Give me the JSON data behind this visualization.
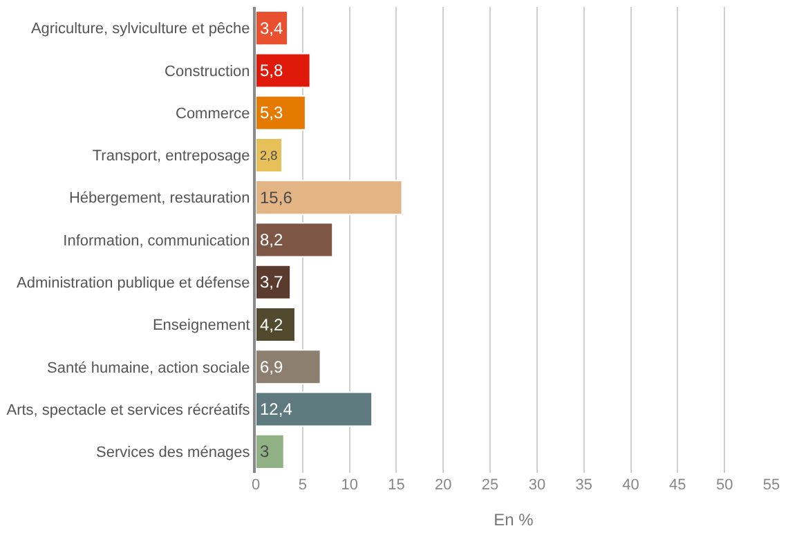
{
  "chart_data": {
    "type": "bar",
    "orientation": "horizontal",
    "xlabel": "En %",
    "categories": [
      "Agriculture, sylviculture et pêche",
      "Construction",
      "Commerce",
      "Transport, entreposage",
      "Hébergement, restauration",
      "Information, communication",
      "Administration publique et défense",
      "Enseignement",
      "Santé humaine, action sociale",
      "Arts, spectacle et services récréatifs",
      "Services des ménages"
    ],
    "values": [
      3.4,
      5.8,
      5.3,
      2.8,
      15.6,
      8.2,
      3.7,
      4.2,
      6.9,
      12.4,
      3
    ],
    "value_labels": [
      "3,4",
      "5,8",
      "5,3",
      "2,8",
      "15,6",
      "8,2",
      "3,7",
      "4,2",
      "6,9",
      "12,4",
      "3"
    ],
    "colors": [
      "#e8502f",
      "#e01a0a",
      "#e57a00",
      "#e8c05a",
      "#e3b585",
      "#7d5646",
      "#5a3b2e",
      "#514a2e",
      "#8c7f70",
      "#5e7a7f",
      "#8fb184"
    ],
    "xlim": [
      0,
      55
    ],
    "xticks": [
      0,
      5,
      10,
      15,
      20,
      25,
      30,
      35,
      40,
      45,
      50,
      55
    ],
    "grid": "x",
    "legend": false
  }
}
